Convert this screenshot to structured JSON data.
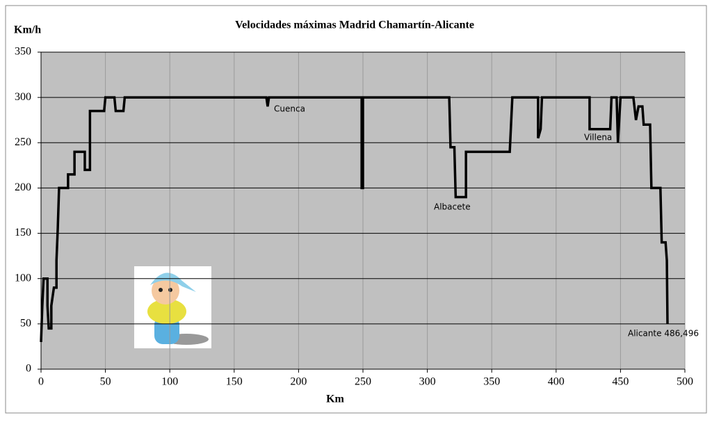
{
  "chart_data": {
    "type": "line",
    "title": "Velocidades máximas Madrid Chamartín-Alicante",
    "x_label": "Km",
    "y_label": "Km/h",
    "x": [
      0,
      1,
      2,
      5,
      5,
      6,
      8,
      8,
      10,
      12,
      12,
      13,
      14,
      21,
      21,
      26,
      26,
      34,
      34,
      38,
      38,
      49,
      50,
      57,
      58,
      64,
      65,
      175,
      176,
      177,
      249,
      249,
      250,
      250,
      317,
      318,
      321,
      322,
      330,
      330,
      364,
      365,
      366,
      386,
      386,
      388,
      389,
      426,
      426,
      442,
      443,
      447,
      448,
      450,
      460,
      462,
      464,
      467,
      468,
      473,
      474,
      481,
      482,
      485,
      486,
      486.5
    ],
    "values": [
      30,
      70,
      100,
      100,
      70,
      45,
      45,
      70,
      90,
      90,
      120,
      155,
      200,
      200,
      215,
      215,
      240,
      240,
      220,
      220,
      285,
      285,
      300,
      300,
      285,
      285,
      300,
      300,
      290,
      300,
      300,
      200,
      200,
      300,
      300,
      245,
      245,
      190,
      190,
      240,
      240,
      270,
      300,
      300,
      255,
      265,
      300,
      300,
      265,
      265,
      300,
      300,
      250,
      300,
      300,
      275,
      290,
      290,
      270,
      270,
      200,
      200,
      140,
      140,
      120,
      50
    ],
    "color": "#000000",
    "xlim": [
      0,
      500
    ],
    "xticks": [
      0,
      50,
      100,
      150,
      200,
      250,
      300,
      350,
      400,
      450,
      500
    ],
    "ylim": [
      0,
      350
    ],
    "yticks": [
      0,
      50,
      100,
      150,
      200,
      250,
      300,
      350
    ],
    "grid": true,
    "annotations": [
      "Cuenca",
      "Albacete",
      "Villena",
      "Alicante 486,496"
    ]
  }
}
